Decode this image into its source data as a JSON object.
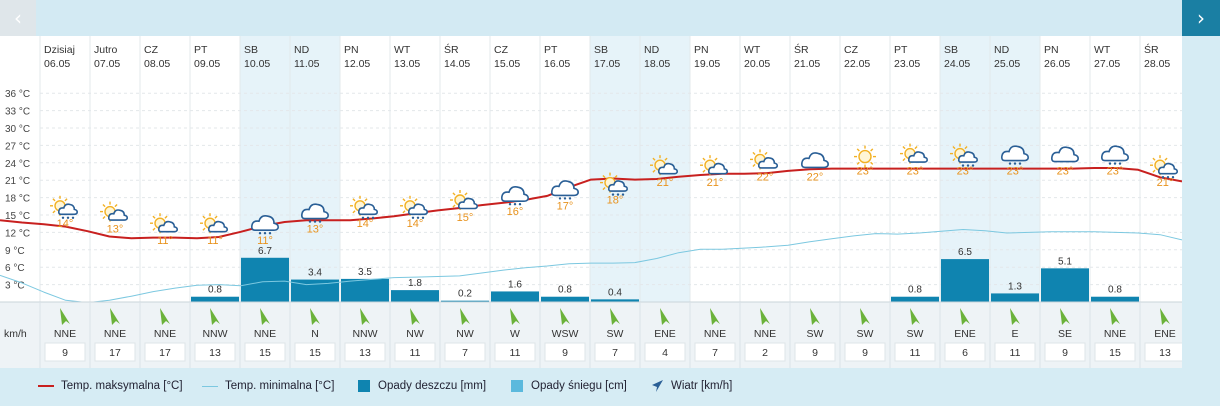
{
  "nav": {
    "prev_label": "‹",
    "next_label": "›"
  },
  "colors": {
    "max_temp": "#c8201f",
    "min_temp": "#7cc8e0",
    "rain": "#0f84b0",
    "snow": "#5bb9dd",
    "weekend": "#e6f3f9",
    "icon_sun": "#f2b124",
    "icon_cloud": "#2a5f96",
    "temp_label": "#e8931e"
  },
  "units": {
    "wind": "km/h"
  },
  "legend": {
    "max_temp": "Temp. maksymalna [°C]",
    "min_temp": "Temp. minimalna [°C]",
    "rain": "Opady deszczu [mm]",
    "snow": "Opady śniegu [cm]",
    "wind": "Wiatr [km/h]"
  },
  "chart_data": {
    "type": "line",
    "ylim": [
      0,
      38
    ],
    "yticks": [
      "3 °C",
      "6 °C",
      "9 °C",
      "12 °C",
      "15 °C",
      "18 °C",
      "21 °C",
      "24 °C",
      "27 °C",
      "30 °C",
      "33 °C",
      "36 °C"
    ],
    "days": [
      {
        "name": "Dzisiaj",
        "date": "06.05",
        "weekend": false,
        "icon": "partly-cloudy-rain-icon",
        "temp_label": "14°",
        "wind_dir": "NNE",
        "wind_speed": "9",
        "rain": null
      },
      {
        "name": "Jutro",
        "date": "07.05",
        "weekend": false,
        "icon": "partly-cloudy-icon",
        "temp_label": "13°",
        "wind_dir": "NNE",
        "wind_speed": "17",
        "rain": null
      },
      {
        "name": "CZ",
        "date": "08.05",
        "weekend": false,
        "icon": "partly-cloudy-icon",
        "temp_label": "11°",
        "wind_dir": "NNE",
        "wind_speed": "17",
        "rain": null
      },
      {
        "name": "PT",
        "date": "09.05",
        "weekend": false,
        "icon": "partly-cloudy-icon",
        "temp_label": "11°",
        "wind_dir": "NNW",
        "wind_speed": "13",
        "rain": "0.8"
      },
      {
        "name": "SB",
        "date": "10.05",
        "weekend": true,
        "icon": "rain-cloud-icon",
        "temp_label": "11°",
        "wind_dir": "NNE",
        "wind_speed": "15",
        "rain": "6.7"
      },
      {
        "name": "ND",
        "date": "11.05",
        "weekend": true,
        "icon": "rain-cloud-icon",
        "temp_label": "13°",
        "wind_dir": "N",
        "wind_speed": "15",
        "rain": "3.4"
      },
      {
        "name": "PN",
        "date": "12.05",
        "weekend": false,
        "icon": "partly-cloudy-rain-icon",
        "temp_label": "14°",
        "wind_dir": "NNW",
        "wind_speed": "13",
        "rain": "3.5"
      },
      {
        "name": "WT",
        "date": "13.05",
        "weekend": false,
        "icon": "partly-cloudy-rain-icon",
        "temp_label": "14°",
        "wind_dir": "NW",
        "wind_speed": "11",
        "rain": "1.8"
      },
      {
        "name": "ŚR",
        "date": "14.05",
        "weekend": false,
        "icon": "partly-cloudy-icon",
        "temp_label": "15°",
        "wind_dir": "NW",
        "wind_speed": "7",
        "rain": "0.2"
      },
      {
        "name": "CZ",
        "date": "15.05",
        "weekend": false,
        "icon": "rain-cloud-icon",
        "temp_label": "16°",
        "wind_dir": "W",
        "wind_speed": "11",
        "rain": "1.6"
      },
      {
        "name": "PT",
        "date": "16.05",
        "weekend": false,
        "icon": "rain-cloud-icon",
        "temp_label": "17°",
        "wind_dir": "WSW",
        "wind_speed": "9",
        "rain": "0.8"
      },
      {
        "name": "SB",
        "date": "17.05",
        "weekend": true,
        "icon": "partly-cloudy-rain-icon",
        "temp_label": "18°",
        "wind_dir": "SW",
        "wind_speed": "7",
        "rain": "0.4"
      },
      {
        "name": "ND",
        "date": "18.05",
        "weekend": true,
        "icon": "partly-cloudy-icon",
        "temp_label": "21°",
        "wind_dir": "ENE",
        "wind_speed": "4",
        "rain": null
      },
      {
        "name": "PN",
        "date": "19.05",
        "weekend": false,
        "icon": "partly-cloudy-icon",
        "temp_label": "21°",
        "wind_dir": "NNE",
        "wind_speed": "7",
        "rain": null
      },
      {
        "name": "WT",
        "date": "20.05",
        "weekend": false,
        "icon": "partly-cloudy-icon",
        "temp_label": "22°",
        "wind_dir": "NNE",
        "wind_speed": "2",
        "rain": null
      },
      {
        "name": "ŚR",
        "date": "21.05",
        "weekend": false,
        "icon": "cloud-icon",
        "temp_label": "22°",
        "wind_dir": "SW",
        "wind_speed": "9",
        "rain": null
      },
      {
        "name": "CZ",
        "date": "22.05",
        "weekend": false,
        "icon": "sun-icon",
        "temp_label": "23°",
        "wind_dir": "SW",
        "wind_speed": "9",
        "rain": null
      },
      {
        "name": "PT",
        "date": "23.05",
        "weekend": false,
        "icon": "partly-cloudy-icon",
        "temp_label": "23°",
        "wind_dir": "SW",
        "wind_speed": "11",
        "rain": "0.8"
      },
      {
        "name": "SB",
        "date": "24.05",
        "weekend": true,
        "icon": "partly-cloudy-rain-icon",
        "temp_label": "23°",
        "wind_dir": "ENE",
        "wind_speed": "6",
        "rain": "6.5"
      },
      {
        "name": "ND",
        "date": "25.05",
        "weekend": true,
        "icon": "rain-cloud-icon",
        "temp_label": "23°",
        "wind_dir": "E",
        "wind_speed": "11",
        "rain": "1.3"
      },
      {
        "name": "PN",
        "date": "26.05",
        "weekend": false,
        "icon": "cloud-icon",
        "temp_label": "23°",
        "wind_dir": "SE",
        "wind_speed": "9",
        "rain": "5.1"
      },
      {
        "name": "WT",
        "date": "27.05",
        "weekend": false,
        "icon": "rain-cloud-icon",
        "temp_label": "23°",
        "wind_dir": "NNE",
        "wind_speed": "15",
        "rain": "0.8"
      },
      {
        "name": "ŚR",
        "date": "28.05",
        "weekend": false,
        "icon": "partly-cloudy-rain-icon",
        "temp_label": "21°",
        "wind_dir": "ENE",
        "wind_speed": "13",
        "rain": null
      }
    ],
    "max_temp_curve": [
      14.1,
      13.7,
      13.4,
      13.0,
      12.2,
      11.3,
      11.0,
      11.1,
      11.1,
      11.0,
      11.2,
      12.1,
      13.1,
      13.8,
      14.1,
      14.1,
      14.1,
      14.4,
      14.8,
      15.3,
      15.8,
      16.2,
      16.7,
      17.1,
      17.6,
      18.3,
      19.8,
      21.1,
      21.3,
      21.1,
      21.2,
      21.6,
      21.9,
      22.1,
      22.1,
      22.2,
      22.6,
      22.9,
      23.0,
      23.0,
      23.0,
      23.0,
      23.0,
      23.0,
      23.0,
      23.0,
      23.0,
      23.0,
      23.0,
      23.0,
      23.1,
      23.1,
      22.8,
      21.5,
      20.8
    ],
    "min_temp_curve": [
      4.6,
      3.3,
      1.7,
      0.3,
      -0.1,
      0.3,
      1.0,
      1.8,
      2.4,
      2.9,
      3.0,
      2.8,
      3.5,
      3.6,
      3.0,
      3.2,
      3.6,
      3.9,
      4.2,
      4.3,
      4.4,
      4.5,
      5.0,
      5.5,
      5.9,
      6.2,
      6.6,
      6.7,
      6.7,
      6.8,
      7.5,
      8.5,
      9.1,
      9.1,
      9.3,
      9.5,
      9.8,
      10.4,
      10.9,
      11.4,
      11.8,
      11.7,
      11.9,
      12.2,
      12.5,
      12.3,
      11.9,
      12.0,
      12.1,
      12.1,
      12.1,
      12.0,
      11.9,
      11.6,
      10.7
    ]
  }
}
